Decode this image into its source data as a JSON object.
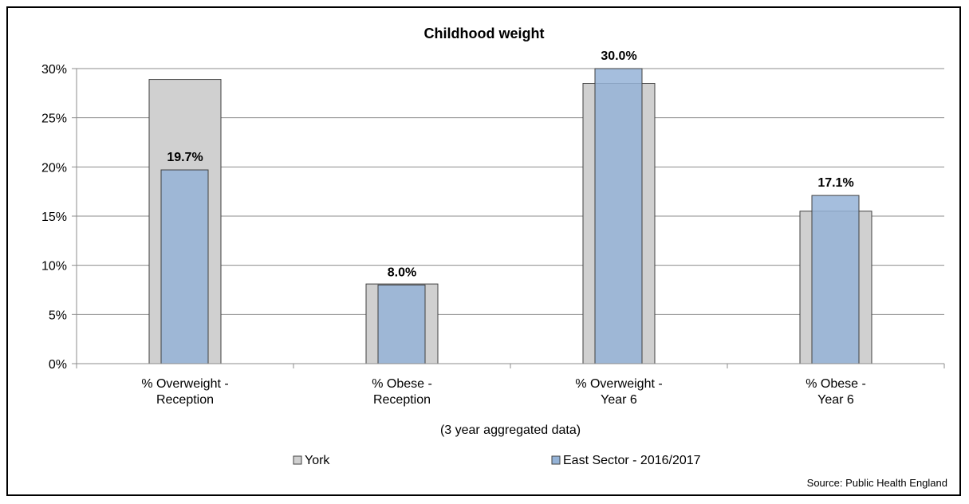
{
  "chart_data": {
    "type": "bar",
    "title": "Childhood weight",
    "xlabel": "(3 year aggregated data)",
    "ylabel": "",
    "ylim": [
      0,
      30
    ],
    "yticks": [
      "0%",
      "5%",
      "10%",
      "15%",
      "20%",
      "25%",
      "30%"
    ],
    "categories": [
      [
        "% Overweight -",
        "Reception"
      ],
      [
        "% Obese -",
        "Reception"
      ],
      [
        "% Overweight -",
        "Year 6"
      ],
      [
        "% Obese -",
        "Year 6"
      ]
    ],
    "series": [
      {
        "name": "York",
        "values": [
          28.9,
          8.1,
          28.5,
          15.5
        ],
        "color": "#d0d0d0"
      },
      {
        "name": "East Sector - 2016/2017",
        "values": [
          19.7,
          8.0,
          30.0,
          17.1
        ],
        "color": "#95b3d7",
        "labels": [
          "19.7%",
          "8.0%",
          "30.0%",
          "17.1%"
        ]
      }
    ],
    "grid": true,
    "legend": "bottom",
    "source": "Source: Public Health England",
    "colors": {
      "axis_label_accent": "#2e75b6",
      "overlap_fill": "#8fabc8"
    }
  }
}
